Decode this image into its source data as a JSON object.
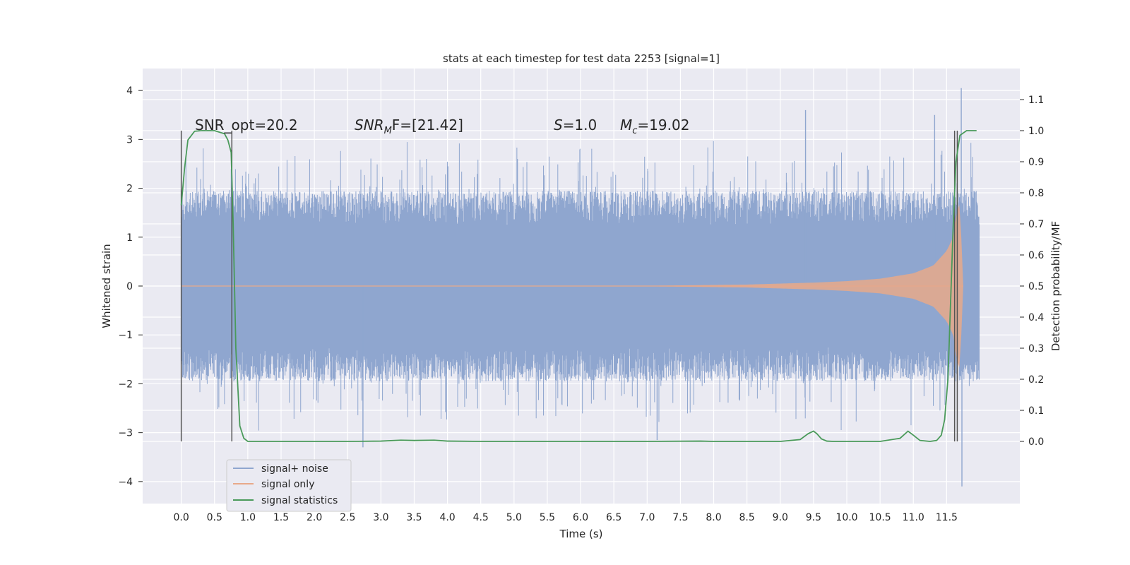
{
  "chart_data": {
    "type": "line",
    "title": "stats at each timestep for test data 2253 [signal=1]",
    "xlabel": "Time (s)",
    "ylabel": "Whitened strain",
    "y2label": "Detection probability/MF",
    "xlim": [
      -0.58,
      12.6
    ],
    "ylim": [
      -4.45,
      4.45
    ],
    "y2lim": [
      -0.2,
      1.2
    ],
    "xticks": [
      "0.0",
      "0.5",
      "1.0",
      "1.5",
      "2.0",
      "2.5",
      "3.0",
      "3.5",
      "4.0",
      "4.5",
      "5.0",
      "5.5",
      "6.0",
      "6.5",
      "7.0",
      "7.5",
      "8.0",
      "8.5",
      "9.0",
      "9.5",
      "10.0",
      "10.5",
      "11.0",
      "11.5"
    ],
    "yticks": [
      "4",
      "3",
      "2",
      "1",
      "0",
      "−1",
      "−2",
      "−3",
      "−4"
    ],
    "y2ticks": [
      "1.1",
      "1.0",
      "0.9",
      "0.8",
      "0.7",
      "0.6",
      "0.5",
      "0.4",
      "0.3",
      "0.2",
      "0.1",
      "0.0"
    ],
    "grid": true,
    "legend_position": "lower-left",
    "annotations": {
      "snr_opt": "SNR_opt=20.2",
      "snr_mf_main": "SNR",
      "snr_mf_sub": "M",
      "snr_mf_rest": "F=[21.42]",
      "s_var": "S",
      "s_val": "=1.0",
      "mc_var": "M",
      "mc_sub": "c",
      "mc_val": "=19.02"
    },
    "vertical_markers_s": [
      0.0,
      0.76,
      11.62,
      11.66
    ],
    "series": [
      {
        "name": "signal+ noise",
        "color": "#8fa6cf",
        "description_values": {
          "t_start": 0.0,
          "t_end": 11.99,
          "typical_band": [
            -1.25,
            1.25
          ],
          "peaks": [
            [
              11.72,
              4.05
            ],
            [
              11.73,
              -4.1
            ],
            [
              9.38,
              3.6
            ],
            [
              11.32,
              3.5
            ],
            [
              2.73,
              -3.3
            ],
            [
              7.15,
              -3.15
            ]
          ]
        }
      },
      {
        "name": "signal only",
        "color": "#e8a98a",
        "envelope": {
          "t": [
            0.0,
            7.0,
            8.5,
            9.5,
            10.0,
            10.5,
            11.0,
            11.3,
            11.5,
            11.6,
            11.65,
            11.7,
            11.75
          ],
          "amp": [
            0.0,
            0.005,
            0.03,
            0.07,
            0.1,
            0.15,
            0.26,
            0.42,
            0.72,
            1.0,
            1.5,
            1.7,
            0.0
          ]
        }
      },
      {
        "name": "signal statistics",
        "color": "#4a9a5a",
        "x": [
          0.0,
          0.05,
          0.1,
          0.2,
          0.3,
          0.5,
          0.65,
          0.7,
          0.75,
          0.78,
          0.82,
          0.88,
          0.94,
          1.0,
          1.5,
          2.0,
          2.5,
          3.0,
          3.3,
          3.5,
          3.8,
          4.0,
          4.5,
          5.0,
          6.0,
          7.0,
          7.8,
          8.0,
          9.0,
          9.3,
          9.42,
          9.5,
          9.55,
          9.62,
          9.7,
          9.8,
          10.0,
          10.5,
          10.8,
          10.92,
          11.0,
          11.1,
          11.25,
          11.35,
          11.42,
          11.47,
          11.52,
          11.56,
          11.6,
          11.64,
          11.7,
          11.8,
          11.95
        ],
        "y": [
          0.76,
          0.88,
          0.97,
          0.998,
          1.0,
          1.0,
          0.99,
          0.97,
          0.93,
          0.7,
          0.3,
          0.05,
          0.01,
          0.0,
          0.0,
          0.0,
          0.0,
          0.001,
          0.004,
          0.003,
          0.004,
          0.001,
          0.0,
          0.0,
          0.0,
          0.0,
          0.001,
          0.0,
          0.0,
          0.006,
          0.025,
          0.033,
          0.025,
          0.008,
          0.001,
          0.0,
          0.0,
          0.0,
          0.01,
          0.033,
          0.02,
          0.003,
          0.0,
          0.003,
          0.02,
          0.07,
          0.2,
          0.45,
          0.7,
          0.9,
          0.985,
          1.0,
          1.0
        ]
      }
    ]
  }
}
